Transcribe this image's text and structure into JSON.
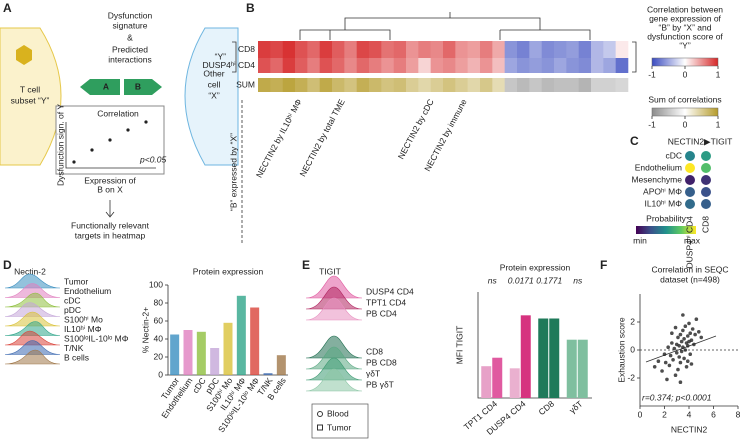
{
  "panel_a": {
    "letter": "A",
    "signature": [
      "Dysfunction",
      "signature"
    ],
    "amp": "&",
    "interactions": [
      "Predicted",
      "interactions"
    ],
    "t_cell": [
      "T cell",
      "subset “Y”"
    ],
    "other_cell": [
      "Other",
      "cell",
      "“X”"
    ],
    "ligand": "A",
    "receptor": "B",
    "inset_title": "Correlation",
    "inset_y": "Dysfunction sign. of Y",
    "inset_p": "p<0.05",
    "inset_x": [
      "Expression of",
      "B on X"
    ],
    "outcome": [
      "Functionally relevant",
      "targets in heatmap"
    ]
  },
  "panel_b": {
    "letter": "B",
    "y_label": "“Y”",
    "x_label": "“B” expressed by “X”",
    "rows": [
      "CD8",
      "DUSP4ʰⁱ CD4",
      "SUM"
    ],
    "values": [
      [
        0.9,
        0.85,
        0.95,
        0.8,
        0.7,
        0.9,
        0.75,
        0.6,
        0.85,
        0.8,
        0.65,
        0.7,
        0.5,
        0.6,
        0.55,
        0.7,
        0.5,
        0.45,
        0.6,
        0.4,
        -0.6,
        -0.7,
        -0.5,
        -0.65,
        -0.6,
        -0.55,
        -0.7,
        -0.4,
        -0.3,
        0.1
      ],
      [
        0.8,
        0.7,
        0.9,
        0.75,
        0.6,
        0.8,
        0.7,
        0.55,
        0.7,
        0.6,
        0.5,
        0.6,
        0.45,
        0.2,
        0.5,
        0.55,
        0.45,
        0.35,
        0.5,
        0.3,
        -0.5,
        -0.6,
        -0.55,
        -0.6,
        -0.5,
        -0.6,
        -0.65,
        -0.4,
        -0.5,
        -0.8
      ],
      [
        0.85,
        0.8,
        0.9,
        0.8,
        0.65,
        0.85,
        0.7,
        0.6,
        0.8,
        0.7,
        0.6,
        0.65,
        0.5,
        0.4,
        0.5,
        0.6,
        0.5,
        0.4,
        0.55,
        0.35,
        -0.5,
        -0.6,
        -0.5,
        -0.6,
        -0.55,
        -0.55,
        -0.65,
        -0.4,
        -0.4,
        -0.35
      ]
    ],
    "annotations": [
      "NECTIN2 by IL10ʰⁱ MΦ",
      "NECTIN2 by total TME",
      "NECTIN2 by cDC",
      "NECTIN2 by immune"
    ],
    "legend_corr": {
      "title": [
        "Correlation between",
        "gene expression of",
        "“B” by “X” and",
        "dysfunction score of",
        "“Y”"
      ],
      "ticks": [
        -1,
        0,
        1
      ]
    },
    "legend_sum": {
      "title": "Sum of correlations",
      "ticks": [
        -1,
        0,
        1
      ]
    }
  },
  "panel_c": {
    "letter": "C",
    "title": "NECTIN2▶TIGIT",
    "rows": [
      "cDC",
      "Endothelium",
      "Mesenchyme",
      "APOʰⁱ MΦ",
      "IL10ʰⁱ MΦ"
    ],
    "columns": [
      "DUSP4ʰⁱ CD4",
      "CD8"
    ],
    "values": [
      [
        0.45,
        0.55
      ],
      [
        1.0,
        0.7
      ],
      [
        0.1,
        0.15
      ],
      [
        0.3,
        0.25
      ],
      [
        0.35,
        0.3
      ]
    ],
    "legend_title": "Probability",
    "legend_min": "min",
    "legend_max": "max"
  },
  "chart_data": [
    {
      "type": "bar",
      "letter": "D",
      "title": "Protein expression",
      "y_label": "% Nectin-2+",
      "histogram_title": "Nectin-2",
      "histogram_labels": [
        "Tumor",
        "Endothelium",
        "cDC",
        "pDC",
        "S100ʰⁱ Mo",
        "IL10ʰⁱ MΦ",
        "S100ˡᵒIL-10ˡᵒ MΦ",
        "T/NK",
        "B cells"
      ],
      "categories": [
        "Tumor",
        "Endothelium",
        "cDC",
        "pDC",
        "S100ʰⁱ Mo",
        "IL10ʰⁱ MΦ",
        "S100ˡᵒIL-10ˡᵒ MΦ",
        "T/NK",
        "B cells"
      ],
      "values": [
        45,
        50,
        48,
        30,
        58,
        88,
        75,
        2,
        22
      ],
      "colors": [
        "#3a8fc0",
        "#e07fbf",
        "#8fbf3f",
        "#c4a6d8",
        "#d9c23a",
        "#2fa58a",
        "#d9433a",
        "#3a68b0",
        "#a0784a"
      ],
      "ylim": [
        0,
        100
      ],
      "yticks": [
        0,
        20,
        40,
        60,
        80,
        100
      ]
    },
    {
      "type": "grouped_bar",
      "letter": "E",
      "title": "Protein expression",
      "y_label": "MFI TIGIT",
      "histogram_title": "TIGIT",
      "histogram_labels": [
        "DUSP4 CD4",
        "TPT1 CD4",
        "PB CD4",
        "CD8",
        "PB CD8",
        "γδT",
        "PB γδT"
      ],
      "histogram_colors": [
        "#e05aa0",
        "#b0235f",
        "#e890c0",
        "#1f6e50",
        "#5aa882",
        "#3d9a72",
        "#8cc6a6"
      ],
      "categories": [
        "TPT1 CD4",
        "DUSP4 CD4",
        "CD8",
        "γδT"
      ],
      "series": [
        {
          "name": "Blood",
          "colors": [
            "#e7a1c8",
            "#eab0cf",
            "#1f7a5a",
            "#7fbf9f"
          ],
          "values": [
            30,
            28,
            75,
            55
          ]
        },
        {
          "name": "Tumor",
          "colors": [
            "#e05aa0",
            "#d6337f",
            "#1f7a5a",
            "#7fbf9f"
          ],
          "values": [
            38,
            78,
            75,
            55
          ]
        }
      ],
      "pvalues": [
        "ns",
        "0.0171",
        "0.1771",
        "ns"
      ],
      "ylim": [
        0,
        100
      ]
    },
    {
      "type": "scatter",
      "letter": "F",
      "title": [
        "Correlation in SEQC",
        "dataset (n=498)"
      ],
      "x_label": "NECTIN2",
      "y_label": "Exhaustion score",
      "annotation": "r=0.374; p<0.0001",
      "x": [
        1.2,
        1.5,
        1.8,
        2.0,
        2.1,
        2.3,
        2.4,
        2.5,
        2.6,
        2.7,
        2.8,
        2.9,
        3.0,
        3.0,
        3.1,
        3.2,
        3.2,
        3.3,
        3.3,
        3.4,
        3.4,
        3.5,
        3.5,
        3.6,
        3.6,
        3.7,
        3.7,
        3.8,
        3.8,
        3.9,
        3.9,
        4.0,
        4.0,
        4.1,
        4.1,
        4.2,
        4.3,
        4.4,
        4.5,
        4.6,
        4.8,
        5.0,
        2.2,
        2.6,
        3.1,
        3.5,
        3.9,
        4.2,
        2.9,
        3.3
      ],
      "values": [
        -1.2,
        -0.8,
        -1.5,
        -0.3,
        -0.9,
        0.2,
        -1.1,
        -0.4,
        0.5,
        -0.7,
        0.1,
        -1.8,
        0.4,
        -0.2,
        0.9,
        -0.5,
        0.3,
        1.1,
        -0.9,
        0.6,
        -0.1,
        1.4,
        0.2,
        -0.6,
        0.8,
        1.7,
        0.0,
        0.5,
        -1.2,
        1.0,
        0.3,
        1.9,
        0.6,
        -0.3,
        1.2,
        0.7,
        1.5,
        0.4,
        1.1,
        2.2,
        1.3,
        0.9,
        -2.1,
        1.2,
        -1.4,
        2.5,
        -0.8,
        -1.0,
        1.6,
        -2.3
      ],
      "xlim": [
        0,
        8
      ],
      "ylim": [
        -4,
        4
      ],
      "xticks": [
        0,
        2,
        4,
        6,
        8
      ],
      "yticks": [
        -2,
        0,
        2
      ]
    }
  ]
}
